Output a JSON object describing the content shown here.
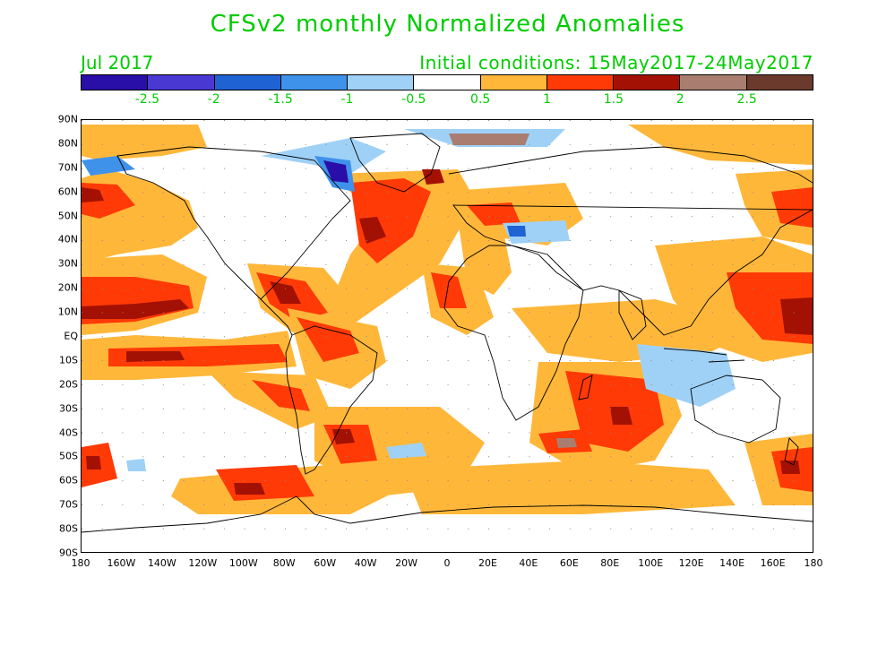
{
  "title": "CFSv2 monthly Normalized Anomalies",
  "month": "Jul 2017",
  "initial_conditions": "Initial conditions: 15May2017-24May2017",
  "colorbar": {
    "colors": [
      "#2a0ea8",
      "#4a38d2",
      "#1f62d4",
      "#3f92ea",
      "#9fd1f7",
      "#ffffff",
      "#ffb73a",
      "#ff3a06",
      "#a31104",
      "#a97e70",
      "#6b3a2c"
    ],
    "labels": [
      "-2.5",
      "-2",
      "-1.5",
      "-1",
      "-0.5",
      "0.5",
      "1",
      "1.5",
      "2",
      "2.5"
    ]
  },
  "lat_labels": [
    "90N",
    "80N",
    "70N",
    "60N",
    "50N",
    "40N",
    "30N",
    "20N",
    "10N",
    "EQ",
    "10S",
    "20S",
    "30S",
    "40S",
    "50S",
    "60S",
    "70S",
    "80S",
    "90S"
  ],
  "lon_labels": [
    "180",
    "160W",
    "140W",
    "120W",
    "100W",
    "80W",
    "60W",
    "40W",
    "20W",
    "0",
    "20E",
    "40E",
    "60E",
    "80E",
    "100E",
    "120E",
    "140E",
    "160E",
    "180"
  ]
}
